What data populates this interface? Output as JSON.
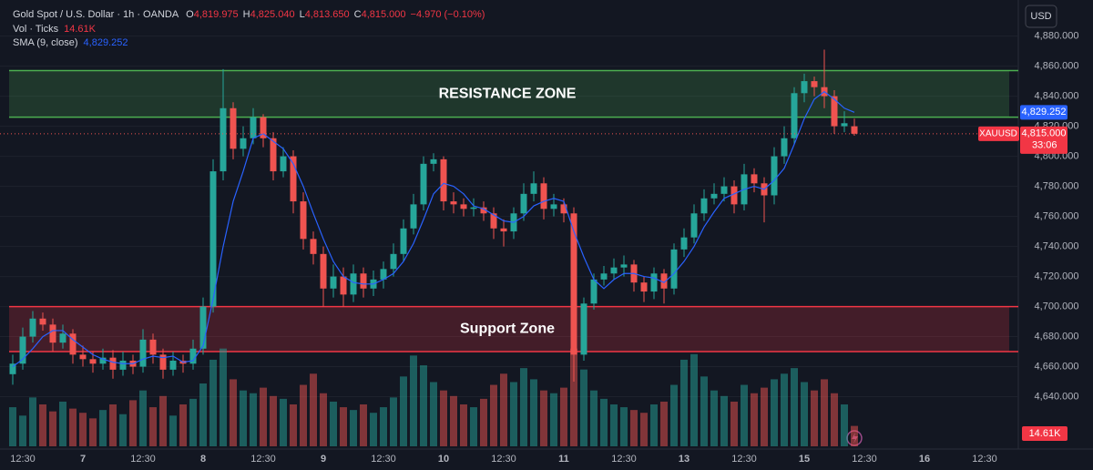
{
  "chart_data": {
    "type": "candlestick",
    "title": "Gold Spot / U.S. Dollar · 1h · OANDA",
    "ohlc_legend": [
      {
        "key": "O",
        "value": "4,819.975"
      },
      {
        "key": "H",
        "value": "4,825.040"
      },
      {
        "key": "L",
        "value": "4,813.650"
      },
      {
        "key": "C",
        "value": "4,815.000"
      }
    ],
    "change": "−4.970 (−0.10%)",
    "currency": "USD",
    "symbol": "XAUUSD",
    "countdown": "33:06",
    "colors": {
      "up": "#26a69a",
      "down": "#ef5350"
    },
    "categories": [
      null,
      "12:30",
      null,
      null,
      null,
      null,
      null,
      "7",
      null,
      null,
      null,
      null,
      null,
      "12:30",
      null,
      null,
      null,
      null,
      null,
      "8",
      null,
      null,
      null,
      null,
      null,
      "12:30",
      null,
      null,
      null,
      null,
      null,
      "9",
      null,
      null,
      null,
      null,
      null,
      "12:30",
      null,
      null,
      null,
      null,
      null,
      "10",
      null,
      null,
      null,
      null,
      null,
      "12:30",
      null,
      null,
      null,
      null,
      null,
      "11",
      null,
      null,
      null,
      null,
      null,
      "12:30",
      null,
      null,
      null,
      null,
      null,
      "13",
      null,
      null,
      null,
      null,
      null,
      "12:30",
      null,
      null,
      null,
      null,
      null,
      "15",
      null,
      null,
      null,
      null,
      null,
      "12:30",
      null,
      null,
      null,
      null,
      null,
      "16",
      null,
      null,
      null,
      null,
      null,
      "12:30"
    ],
    "open": [
      4655,
      4662,
      4680,
      4692,
      4688,
      4676,
      4682,
      4668,
      4665,
      4662,
      4666,
      4658,
      4664,
      4660,
      4678,
      4668,
      4658,
      4664,
      4662,
      4672,
      4700,
      4790,
      4832,
      4805,
      4812,
      4826,
      4812,
      4790,
      4800,
      4770,
      4745,
      4735,
      4712,
      4720,
      4708,
      4722,
      4712,
      4718,
      4725,
      4735,
      4752,
      4768,
      4795,
      4798,
      4770,
      4768,
      4765,
      4766,
      4762,
      4752,
      4750,
      4762,
      4775,
      4782,
      4765,
      4768,
      4762,
      4668,
      4702,
      4718,
      4722,
      4726,
      4728,
      4716,
      4710,
      4722,
      4712,
      4738,
      4746,
      4762,
      4772,
      4775,
      4780,
      4768,
      4788,
      4782,
      4774,
      4800,
      4812,
      4842,
      4850,
      4846,
      4840,
      4820,
      4819.975,
      null,
      null,
      null,
      null,
      null,
      null,
      null,
      null,
      null,
      null,
      null,
      null,
      null
    ],
    "high": [
      4668,
      4686,
      4697,
      4696,
      4692,
      4688,
      4685,
      4674,
      4670,
      4672,
      4671,
      4670,
      4668,
      4685,
      4682,
      4672,
      4670,
      4668,
      4678,
      4706,
      4798,
      4858,
      4836,
      4820,
      4832,
      4828,
      4816,
      4806,
      4804,
      4776,
      4750,
      4740,
      4728,
      4726,
      4728,
      4726,
      4724,
      4730,
      4742,
      4758,
      4775,
      4800,
      4802,
      4800,
      4776,
      4772,
      4772,
      4770,
      4766,
      4758,
      4766,
      4782,
      4790,
      4786,
      4775,
      4772,
      4766,
      4706,
      4722,
      4727,
      4732,
      4734,
      4731,
      4720,
      4726,
      4725,
      4742,
      4752,
      4768,
      4778,
      4782,
      4786,
      4784,
      4795,
      4792,
      4786,
      4806,
      4820,
      4846,
      4855,
      4853,
      4871,
      4844,
      4830,
      4825.04,
      null,
      null,
      null,
      null,
      null,
      null,
      null,
      null,
      null,
      null,
      null,
      null,
      null
    ],
    "low": [
      4648,
      4658,
      4676,
      4684,
      4670,
      4672,
      4662,
      4660,
      4656,
      4658,
      4652,
      4654,
      4655,
      4656,
      4662,
      4652,
      4654,
      4656,
      4658,
      4668,
      4696,
      4784,
      4798,
      4800,
      4808,
      4806,
      4784,
      4786,
      4762,
      4738,
      4728,
      4700,
      4706,
      4700,
      4703,
      4706,
      4707,
      4712,
      4720,
      4730,
      4748,
      4764,
      4790,
      4764,
      4762,
      4760,
      4760,
      4757,
      4745,
      4740,
      4745,
      4757,
      4770,
      4758,
      4760,
      4756,
      4650,
      4664,
      4698,
      4714,
      4718,
      4720,
      4710,
      4703,
      4705,
      4702,
      4708,
      4733,
      4742,
      4757,
      4768,
      4770,
      4762,
      4764,
      4776,
      4756,
      4768,
      4795,
      4808,
      4836,
      4840,
      4832,
      4815,
      4816,
      4813.65,
      null,
      null,
      null,
      null,
      null,
      null,
      null,
      null,
      null,
      null,
      null,
      null,
      null
    ],
    "close": [
      4662,
      4680,
      4692,
      4688,
      4676,
      4682,
      4668,
      4665,
      4662,
      4666,
      4658,
      4664,
      4660,
      4678,
      4668,
      4658,
      4664,
      4662,
      4672,
      4700,
      4790,
      4832,
      4805,
      4812,
      4826,
      4812,
      4790,
      4800,
      4770,
      4745,
      4735,
      4712,
      4720,
      4708,
      4722,
      4712,
      4718,
      4725,
      4735,
      4752,
      4768,
      4795,
      4798,
      4770,
      4768,
      4765,
      4766,
      4762,
      4752,
      4750,
      4762,
      4775,
      4782,
      4765,
      4768,
      4762,
      4668,
      4702,
      4718,
      4722,
      4726,
      4728,
      4716,
      4710,
      4722,
      4712,
      4738,
      4746,
      4762,
      4772,
      4775,
      4780,
      4768,
      4788,
      4782,
      4774,
      4800,
      4812,
      4842,
      4850,
      4846,
      4840,
      4820,
      4822,
      4815,
      null,
      null,
      null,
      null,
      null,
      null,
      null,
      null,
      null,
      null,
      null,
      null,
      null
    ],
    "close_label": "4,815.000",
    "volume": {
      "name": "Vol · Ticks",
      "last_label": "14.61K",
      "vlim": [
        0,
        150000
      ],
      "values": [
        28000,
        22000,
        35000,
        30000,
        25000,
        32000,
        27000,
        24000,
        20000,
        26000,
        30000,
        23000,
        33000,
        40000,
        28000,
        36000,
        22000,
        30000,
        34000,
        45000,
        62000,
        70000,
        48000,
        40000,
        38000,
        42000,
        36000,
        34000,
        30000,
        44000,
        52000,
        38000,
        32000,
        28000,
        26000,
        30000,
        24000,
        28000,
        35000,
        50000,
        65000,
        58000,
        46000,
        40000,
        36000,
        30000,
        28000,
        34000,
        44000,
        52000,
        46000,
        56000,
        48000,
        40000,
        38000,
        42000,
        70000,
        55000,
        40000,
        34000,
        30000,
        28000,
        26000,
        24000,
        30000,
        32000,
        44000,
        62000,
        66000,
        50000,
        40000,
        36000,
        32000,
        44000,
        38000,
        42000,
        48000,
        52000,
        56000,
        46000,
        40000,
        48000,
        38000,
        30000,
        14610,
        null,
        null,
        null,
        null,
        null,
        null,
        null,
        null,
        null,
        null,
        null,
        null,
        null
      ]
    },
    "sma": {
      "name": "SMA (9, close)",
      "last_label": "4,829.252",
      "color": "#2962ff",
      "values": [
        4660,
        4665,
        4672,
        4680,
        4684,
        4684,
        4678,
        4673,
        4668,
        4665,
        4663,
        4662,
        4662,
        4665,
        4667,
        4666,
        4667,
        4663,
        4664,
        4674,
        4705,
        4740,
        4770,
        4790,
        4812,
        4815,
        4810,
        4805,
        4795,
        4780,
        4762,
        4745,
        4730,
        4720,
        4716,
        4715,
        4715,
        4718,
        4722,
        4730,
        4742,
        4758,
        4775,
        4782,
        4780,
        4775,
        4767,
        4765,
        4761,
        4757,
        4756,
        4760,
        4767,
        4770,
        4772,
        4770,
        4750,
        4733,
        4718,
        4712,
        4718,
        4722,
        4722,
        4720,
        4719,
        4716,
        4722,
        4730,
        4740,
        4753,
        4763,
        4772,
        4775,
        4778,
        4780,
        4778,
        4784,
        4792,
        4808,
        4825,
        4838,
        4843,
        4838,
        4832,
        4829.252,
        null,
        null,
        null,
        null,
        null,
        null,
        null,
        null,
        null,
        null,
        null,
        null,
        null
      ]
    },
    "zones": [
      {
        "label": "RESISTANCE ZONE",
        "top": 4857,
        "bottom": 4826,
        "color": "#4caf50"
      },
      {
        "label": "Support Zone",
        "top": 4700,
        "bottom": 4670,
        "color": "#f23645"
      }
    ],
    "ylim": [
      4607,
      4904
    ],
    "yticks": [
      {
        "value": 4640,
        "label": "4,640.000"
      },
      {
        "value": 4660,
        "label": "4,660.000"
      },
      {
        "value": 4680,
        "label": "4,680.000"
      },
      {
        "value": 4700,
        "label": "4,700.000"
      },
      {
        "value": 4720,
        "label": "4,720.000"
      },
      {
        "value": 4740,
        "label": "4,740.000"
      },
      {
        "value": 4760,
        "label": "4,760.000"
      },
      {
        "value": 4780,
        "label": "4,780.000"
      },
      {
        "value": 4800,
        "label": "4,800.000"
      },
      {
        "value": 4820,
        "label": "4,820.000"
      },
      {
        "value": 4840,
        "label": "4,840.000"
      },
      {
        "value": 4860,
        "label": "4,860.000"
      },
      {
        "value": 4880,
        "label": "4,880.000"
      }
    ],
    "grid": true
  }
}
